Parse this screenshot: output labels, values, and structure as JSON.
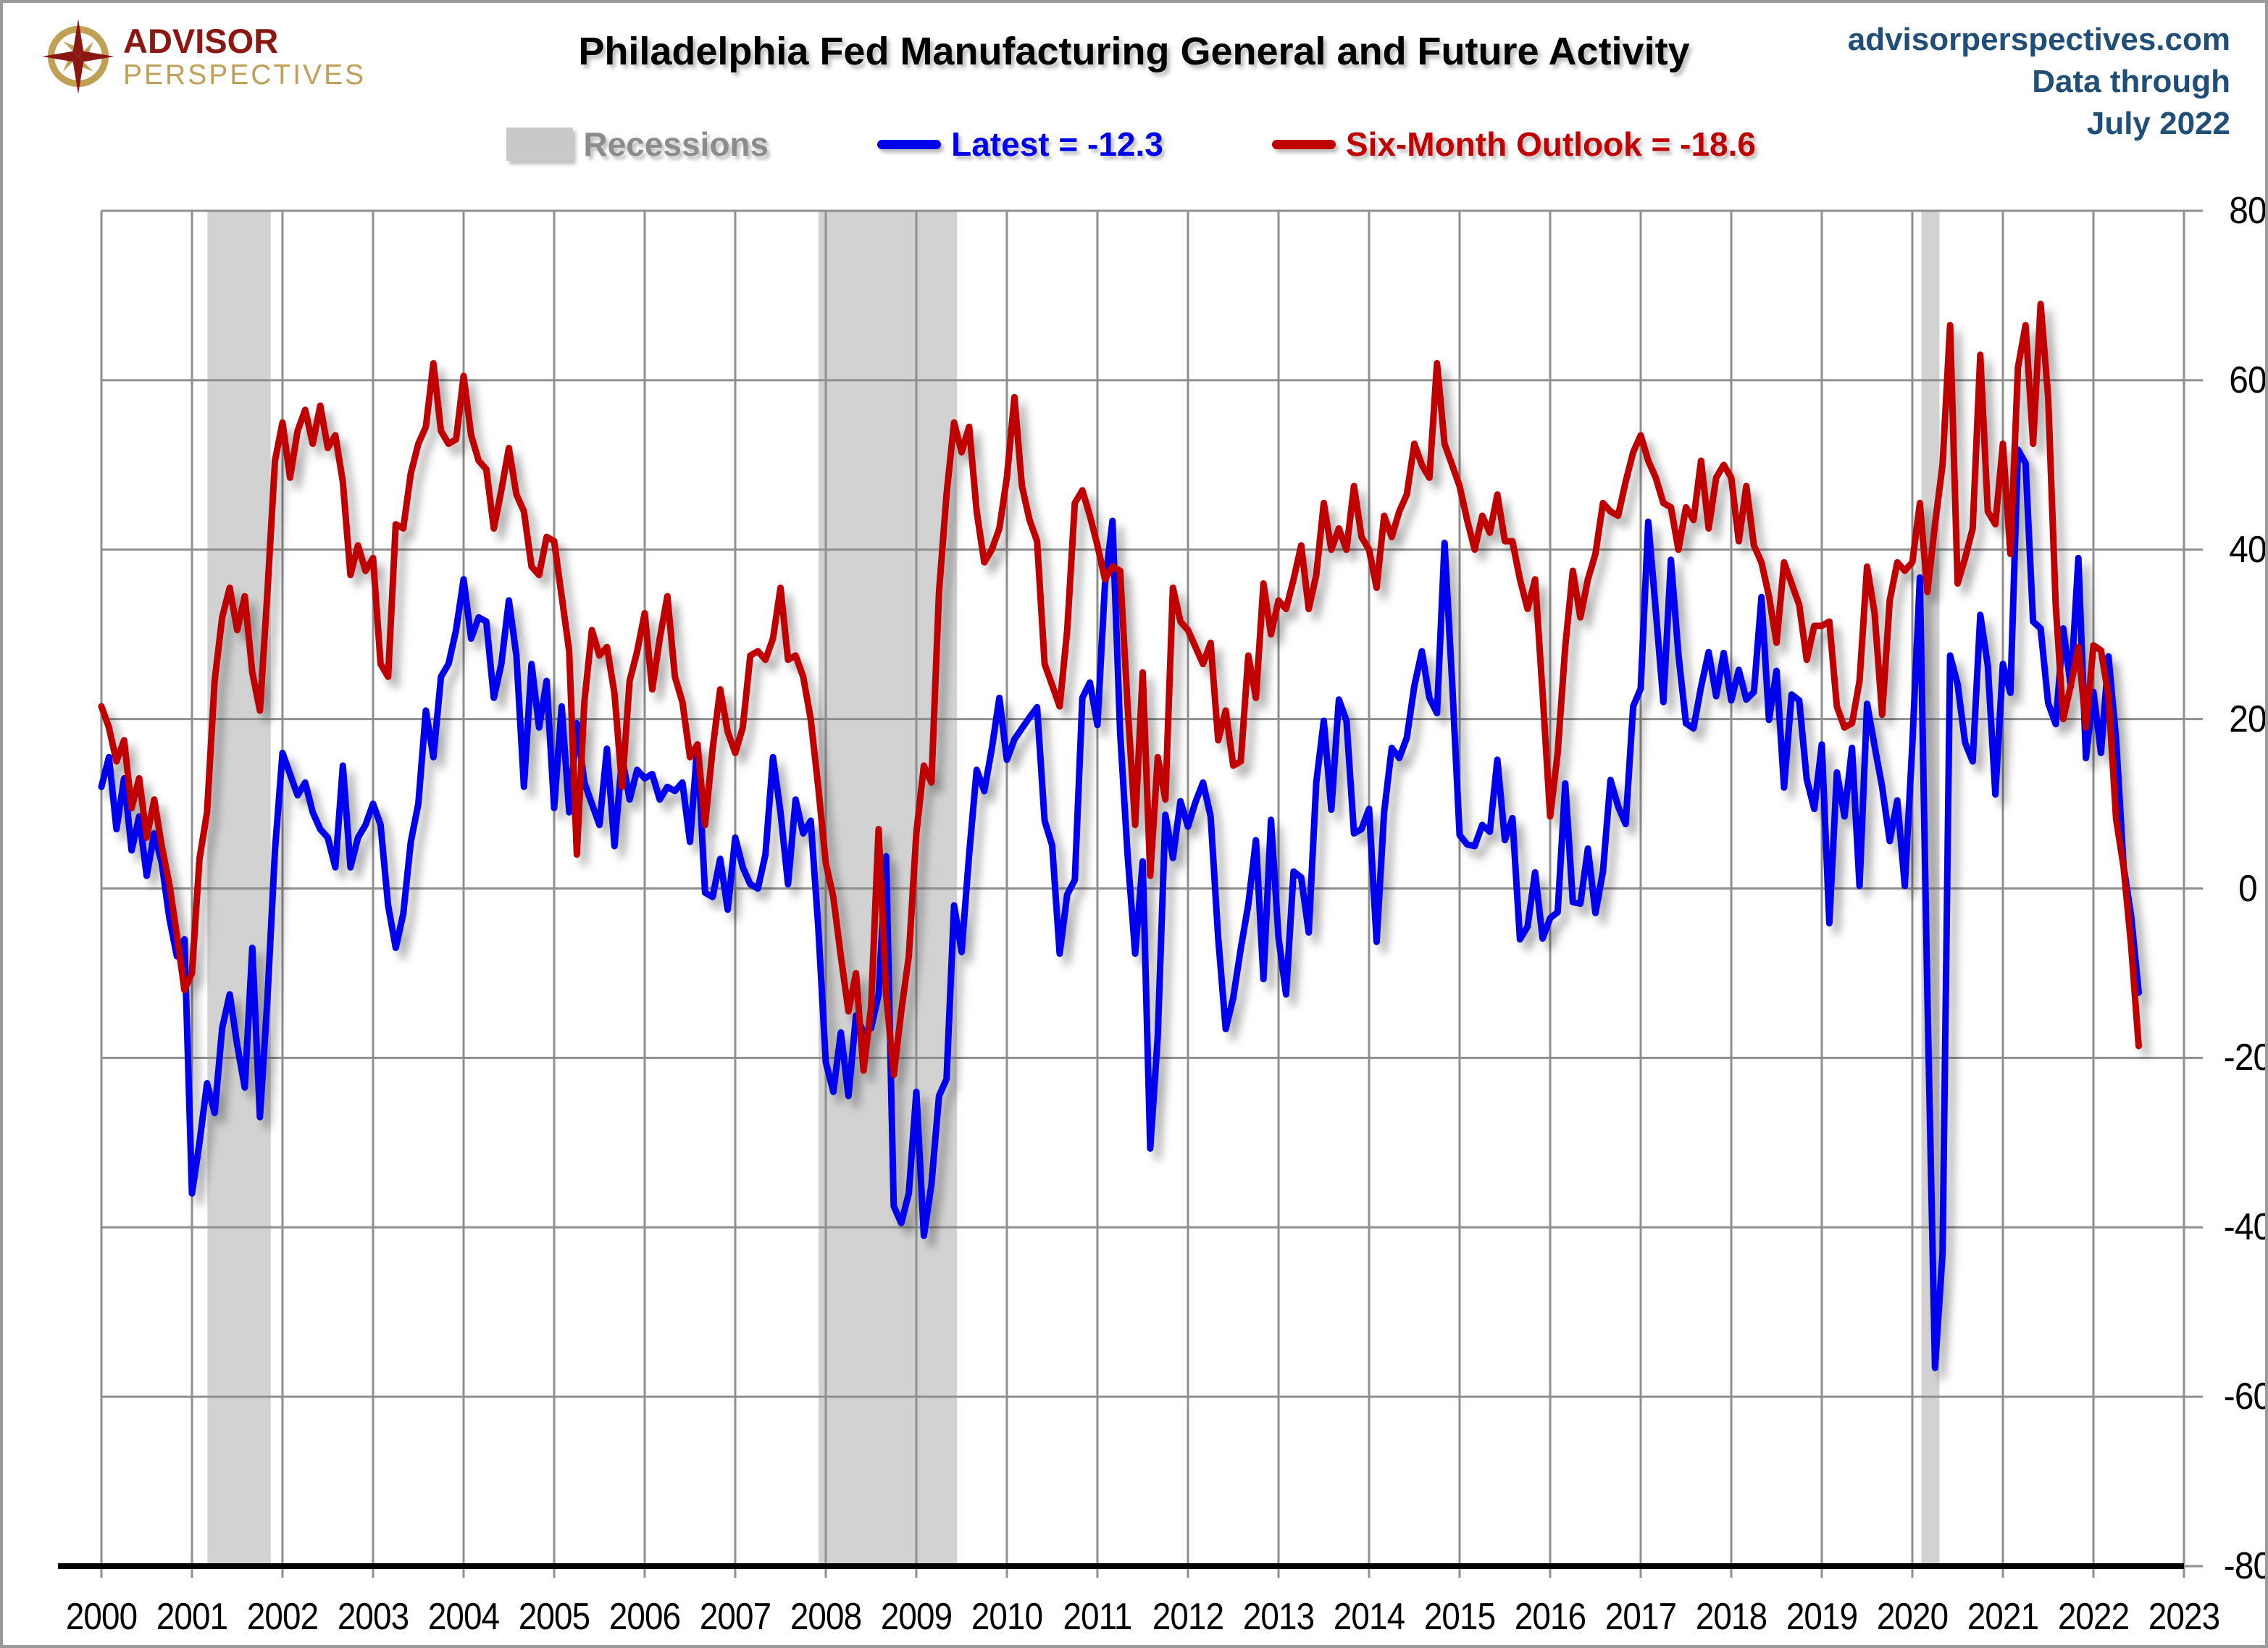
{
  "header": {
    "logo": {
      "icon": "compass-star-icon",
      "line1": "ADVISOR",
      "line2": "PERSPECTIVES",
      "line1_color": "#8b1712",
      "line2_color": "#bfa054"
    },
    "title": "Philadelphia Fed Manufacturing General and Future Activity",
    "source": {
      "line1": "advisorperspectives.com",
      "line2": "Data through",
      "line3": "July 2022",
      "color": "#1f4e79"
    }
  },
  "legend": {
    "items": [
      {
        "label": "Recessions",
        "type": "box",
        "swatch_color": "#c9c9c9",
        "text_color": "#8c8c8c"
      },
      {
        "label": "Latest = -12.3",
        "type": "line",
        "swatch_color": "#0000ee",
        "text_color": "#0000ee"
      },
      {
        "label": "Six-Month Outlook = -18.6",
        "type": "line",
        "swatch_color": "#c00000",
        "text_color": "#c00000"
      }
    ]
  },
  "axes": {
    "x_ticks": [
      "2000",
      "2001",
      "2002",
      "2003",
      "2004",
      "2005",
      "2006",
      "2007",
      "2008",
      "2009",
      "2010",
      "2011",
      "2012",
      "2013",
      "2014",
      "2015",
      "2016",
      "2017",
      "2018",
      "2019",
      "2020",
      "2021",
      "2022",
      "2023"
    ],
    "y_ticks": [
      "80",
      "60",
      "40",
      "20",
      "0",
      "-20",
      "-40",
      "-60",
      "-80"
    ],
    "grid_color": "#8f8f8f",
    "axis_color": "#000000",
    "band_color": "#d2d2d2"
  },
  "chart_data": {
    "type": "line",
    "title": "Philadelphia Fed Manufacturing General and Future Activity",
    "x_start": "2000-01",
    "x_end": "2022-07",
    "frequency": "monthly",
    "xlim": [
      2000,
      2023
    ],
    "ylim": [
      -80,
      80
    ],
    "y_step": 20,
    "legend_position": "top",
    "grid": true,
    "recessions": [
      [
        2001.17,
        2001.87
      ],
      [
        2007.92,
        2009.45
      ],
      [
        2020.1,
        2020.3
      ]
    ],
    "series": [
      {
        "name": "Latest",
        "latest_value": -12.3,
        "color": "#0000ee",
        "values": [
          12.0,
          15.5,
          7.0,
          13.0,
          4.5,
          8.5,
          1.5,
          6.5,
          3.0,
          -3.5,
          -8.0,
          -6.0,
          -36.0,
          -30.0,
          -23.0,
          -26.5,
          -16.5,
          -12.5,
          -18.5,
          -23.5,
          -7.0,
          -27.0,
          -13.0,
          4.5,
          16.0,
          13.5,
          11.0,
          12.5,
          9.0,
          7.0,
          6.0,
          2.5,
          14.5,
          2.5,
          6.0,
          7.5,
          10.0,
          7.5,
          -2.0,
          -7.0,
          -3.0,
          5.5,
          10.0,
          21.0,
          15.5,
          25.0,
          26.5,
          30.5,
          36.5,
          29.5,
          32.0,
          31.5,
          22.5,
          26.5,
          34.0,
          27.5,
          12.0,
          26.5,
          19.0,
          24.5,
          9.5,
          21.5,
          9.0,
          19.5,
          12.5,
          10.0,
          7.5,
          16.5,
          5.0,
          15.5,
          10.5,
          14.0,
          13.0,
          13.5,
          10.5,
          12.0,
          11.5,
          12.5,
          5.5,
          17.0,
          -0.5,
          -1.0,
          3.5,
          -2.5,
          6.0,
          2.5,
          0.5,
          0.0,
          4.0,
          15.5,
          9.0,
          0.5,
          10.5,
          6.5,
          8.0,
          -4.5,
          -20.5,
          -24.0,
          -17.0,
          -24.5,
          -15.0,
          -17.0,
          -16.5,
          -12.5,
          3.8,
          -37.5,
          -39.5,
          -36.0,
          -24.0,
          -41.0,
          -35.0,
          -24.5,
          -22.5,
          -2.0,
          -7.5,
          4.0,
          14.0,
          11.5,
          16.5,
          22.5,
          15.2,
          17.6,
          18.9,
          20.2,
          21.4,
          8.0,
          5.1,
          -7.7,
          -0.7,
          1.0,
          22.5,
          24.3,
          19.3,
          35.9,
          43.4,
          18.5,
          3.9,
          -7.7,
          3.2,
          -30.7,
          -17.5,
          8.7,
          3.6,
          10.3,
          7.3,
          10.2,
          12.5,
          8.5,
          -5.8,
          -16.6,
          -12.9,
          -7.1,
          -1.9,
          5.7,
          -10.7,
          8.1,
          -5.8,
          -12.5,
          2.0,
          1.3,
          -5.2,
          12.5,
          19.8,
          9.3,
          22.3,
          19.8,
          6.5,
          7.0,
          9.4,
          -6.3,
          9.0,
          16.6,
          15.4,
          17.8,
          23.9,
          28.0,
          22.5,
          20.7,
          40.8,
          24.5,
          6.3,
          5.2,
          5.0,
          7.5,
          6.7,
          15.2,
          5.7,
          8.3,
          -6.0,
          -4.5,
          1.9,
          -5.9,
          -3.5,
          -2.8,
          12.4,
          -1.6,
          -1.8,
          4.7,
          -2.9,
          2.0,
          12.8,
          9.7,
          7.6,
          21.5,
          23.6,
          43.3,
          32.8,
          22.0,
          38.8,
          27.6,
          19.5,
          18.9,
          23.8,
          27.9,
          22.7,
          27.8,
          22.2,
          25.8,
          22.3,
          23.2,
          34.4,
          19.9,
          25.7,
          11.9,
          22.9,
          22.2,
          12.9,
          9.4,
          17.0,
          -4.1,
          13.7,
          8.5,
          16.6,
          0.3,
          21.8,
          16.8,
          12.0,
          5.6,
          10.4,
          0.3,
          17.0,
          36.7,
          -12.7,
          -56.6,
          -43.1,
          27.5,
          24.1,
          17.2,
          15.0,
          32.3,
          26.3,
          11.1,
          26.5,
          23.1,
          51.8,
          50.2,
          31.5,
          30.7,
          21.9,
          19.4,
          30.7,
          23.8,
          39.0,
          15.4,
          23.2,
          16.0,
          27.4,
          17.6,
          2.6,
          -3.3,
          -12.3
        ]
      },
      {
        "name": "Six-Month Outlook",
        "latest_value": -18.6,
        "color": "#c00000",
        "values": [
          21.5,
          19.0,
          15.0,
          17.5,
          9.5,
          13.0,
          6.0,
          10.5,
          5.0,
          0.5,
          -5.5,
          -12.0,
          -10.0,
          3.5,
          9.0,
          24.5,
          32.0,
          35.5,
          30.5,
          34.5,
          25.5,
          21.0,
          35.0,
          50.5,
          55.0,
          48.5,
          54.0,
          56.5,
          52.5,
          57.0,
          52.0,
          53.5,
          48.0,
          37.0,
          40.5,
          37.5,
          39.0,
          26.5,
          25.0,
          43.0,
          42.5,
          49.0,
          52.5,
          54.5,
          62.0,
          54.0,
          52.5,
          53.0,
          60.5,
          53.5,
          50.5,
          49.5,
          42.5,
          47.0,
          52.0,
          46.5,
          44.5,
          38.0,
          37.0,
          41.5,
          41.0,
          34.5,
          28.0,
          4.0,
          22.0,
          30.5,
          27.5,
          28.5,
          23.0,
          12.0,
          24.5,
          28.0,
          32.5,
          23.5,
          29.5,
          34.5,
          25.0,
          22.0,
          15.5,
          17.0,
          7.5,
          16.5,
          23.5,
          18.5,
          16.0,
          19.0,
          27.5,
          28.0,
          27.0,
          29.5,
          35.5,
          27.0,
          27.5,
          25.0,
          20.0,
          12.0,
          3.0,
          -1.0,
          -8.0,
          -14.5,
          -10.0,
          -21.5,
          -14.0,
          7.0,
          -12.5,
          -22.0,
          -14.5,
          -8.0,
          6.5,
          14.5,
          12.5,
          35.0,
          46.5,
          55.0,
          51.5,
          54.5,
          44.5,
          38.5,
          40.0,
          42.5,
          48.5,
          58.0,
          47.5,
          43.5,
          41.0,
          26.5,
          24.0,
          21.5,
          30.5,
          45.5,
          47.0,
          44.0,
          40.5,
          36.5,
          38.0,
          37.5,
          21.5,
          7.5,
          25.5,
          1.5,
          15.5,
          10.5,
          35.5,
          31.5,
          30.5,
          28.5,
          26.5,
          29.0,
          17.5,
          21.0,
          14.5,
          15.0,
          27.5,
          22.5,
          36.0,
          30.0,
          34.0,
          33.0,
          36.5,
          40.5,
          33.0,
          37.0,
          45.5,
          40.0,
          42.5,
          40.0,
          47.5,
          41.5,
          40.0,
          35.5,
          44.0,
          41.5,
          44.5,
          46.5,
          52.5,
          50.0,
          48.5,
          62.0,
          52.5,
          50.0,
          47.5,
          43.5,
          40.0,
          44.0,
          42.0,
          46.5,
          41.0,
          41.0,
          36.5,
          33.0,
          36.5,
          23.0,
          8.5,
          16.0,
          28.5,
          37.5,
          32.0,
          36.5,
          39.5,
          45.5,
          44.5,
          44.0,
          48.0,
          51.5,
          53.5,
          50.5,
          48.5,
          45.5,
          45.0,
          40.0,
          45.0,
          43.5,
          50.5,
          42.5,
          48.5,
          50.0,
          48.5,
          41.0,
          47.5,
          40.5,
          38.5,
          34.5,
          29.0,
          38.5,
          36.0,
          33.5,
          27.0,
          31.0,
          31.0,
          31.5,
          21.5,
          19.0,
          19.5,
          24.5,
          38.0,
          32.5,
          20.5,
          34.0,
          38.5,
          37.5,
          38.5,
          45.5,
          35.0,
          43.0,
          50.0,
          66.5,
          36.0,
          39.0,
          42.5,
          63.0,
          44.5,
          43.0,
          52.5,
          39.5,
          61.5,
          66.5,
          52.5,
          69.0,
          58.0,
          33.5,
          20.0,
          24.0,
          28.5,
          19.0,
          28.7,
          28.1,
          22.7,
          8.2,
          2.5,
          -6.8,
          -18.6
        ]
      }
    ]
  }
}
